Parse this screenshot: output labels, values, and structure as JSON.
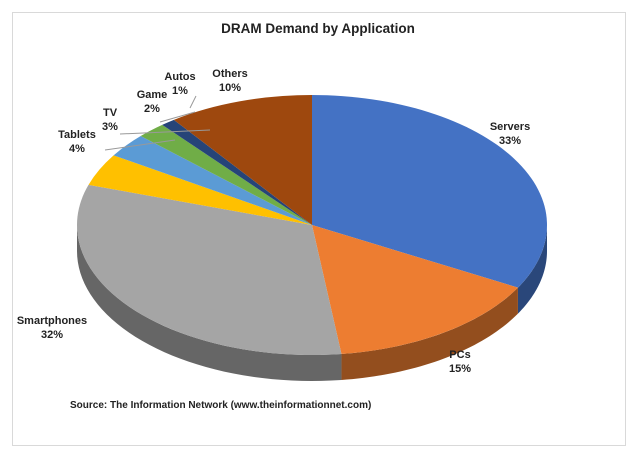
{
  "chart_data": {
    "type": "pie",
    "title": "DRAM Demand by Application",
    "source": "Source: The Information Network (www.theinformationnet.com)",
    "slices": [
      {
        "label": "Servers",
        "value": 33,
        "pct": "33%",
        "color": "#4472C4"
      },
      {
        "label": "PCs",
        "value": 15,
        "pct": "15%",
        "color": "#ED7D31"
      },
      {
        "label": "Smartphones",
        "value": 32,
        "pct": "32%",
        "color": "#A5A5A5"
      },
      {
        "label": "Tablets",
        "value": 4,
        "pct": "4%",
        "color": "#FFC000"
      },
      {
        "label": "TV",
        "value": 3,
        "pct": "3%",
        "color": "#5B9BD5"
      },
      {
        "label": "Game",
        "value": 2,
        "pct": "2%",
        "color": "#70AD47"
      },
      {
        "label": "Autos",
        "value": 1,
        "pct": "1%",
        "color": "#264478"
      },
      {
        "label": "Others",
        "value": 10,
        "pct": "10%",
        "color": "#9E480E"
      }
    ],
    "legend": "none",
    "style": "3d"
  }
}
